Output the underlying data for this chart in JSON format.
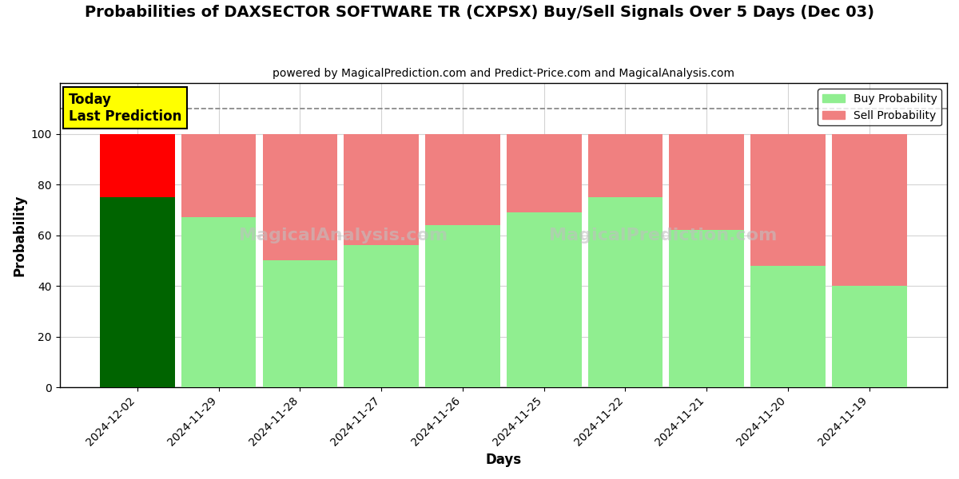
{
  "title": "Probabilities of DAXSECTOR SOFTWARE TR (CXPSX) Buy/Sell Signals Over 5 Days (Dec 03)",
  "subtitle": "powered by MagicalPrediction.com and Predict-Price.com and MagicalAnalysis.com",
  "xlabel": "Days",
  "ylabel": "Probability",
  "categories": [
    "2024-12-02",
    "2024-11-29",
    "2024-11-28",
    "2024-11-27",
    "2024-11-26",
    "2024-11-25",
    "2024-11-22",
    "2024-11-21",
    "2024-11-20",
    "2024-11-19"
  ],
  "buy_values": [
    75,
    67,
    50,
    56,
    64,
    69,
    75,
    62,
    48,
    40
  ],
  "sell_values": [
    25,
    33,
    50,
    44,
    36,
    31,
    25,
    38,
    52,
    60
  ],
  "today_buy_color": "#006400",
  "today_sell_color": "#FF0000",
  "buy_color": "#90EE90",
  "sell_color": "#F08080",
  "ylim": [
    0,
    120
  ],
  "yticks": [
    0,
    20,
    40,
    60,
    80,
    100
  ],
  "dashed_line_y": 110,
  "annotation_text": "Today\nLast Prediction",
  "annotation_bbox_color": "#FFFF00",
  "watermark1": "MagicalAnalysis.com",
  "watermark2": "MagicalPrediction.com",
  "figsize": [
    12,
    6
  ],
  "dpi": 100,
  "bg_color": "#FFFFFF"
}
